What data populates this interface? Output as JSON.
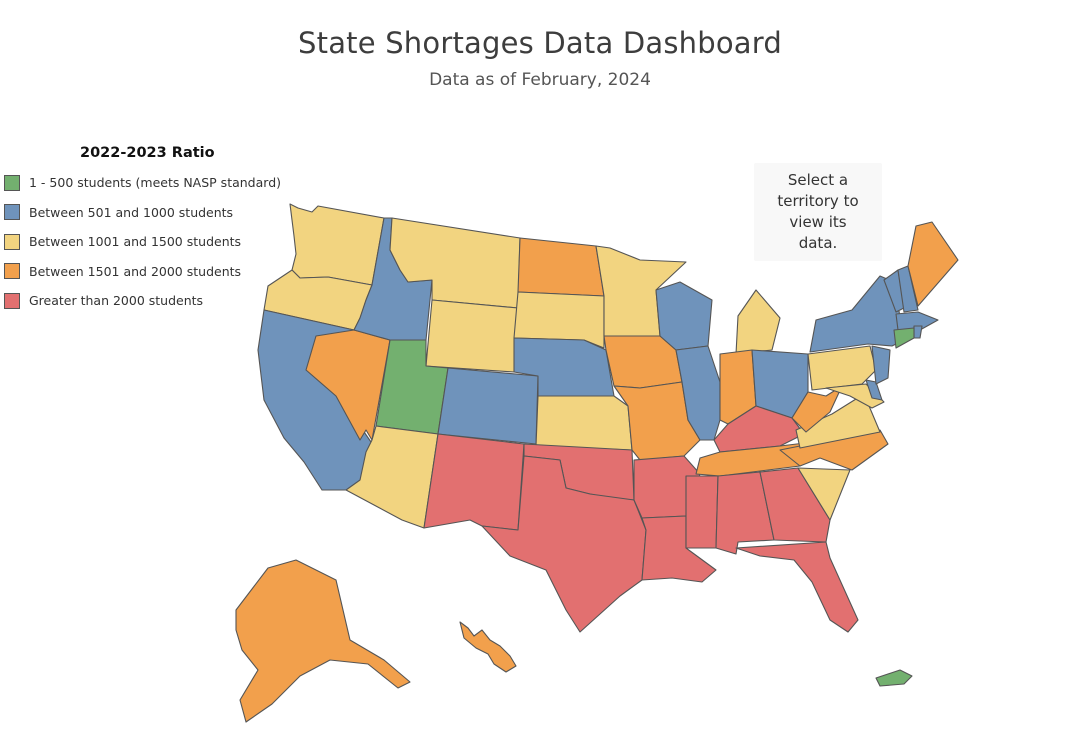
{
  "header": {
    "title": "State Shortages Data Dashboard",
    "subtitle": "Data as of February, 2024"
  },
  "legend": {
    "title": "2022-2023 Ratio",
    "items": [
      {
        "label": "1 - 500 students (meets NASP standard)",
        "color": "#73b06f"
      },
      {
        "label": "Between 501 and 1000 students",
        "color": "#6f93bb"
      },
      {
        "label": "Between 1001 and 1500 students",
        "color": "#f2d480"
      },
      {
        "label": "Between 1501 and 2000 students",
        "color": "#f2a04c"
      },
      {
        "label": "Greater than 2000 students",
        "color": "#e27070"
      }
    ]
  },
  "hint": {
    "text": "Select a\nterritory to\nview its\ndata."
  },
  "map": {
    "states": [
      {
        "name": "Washington",
        "cat": 2
      },
      {
        "name": "Oregon",
        "cat": 2
      },
      {
        "name": "California",
        "cat": 1
      },
      {
        "name": "Nevada",
        "cat": 3
      },
      {
        "name": "Idaho",
        "cat": 1
      },
      {
        "name": "Montana",
        "cat": 2
      },
      {
        "name": "Wyoming",
        "cat": 2
      },
      {
        "name": "Utah",
        "cat": 0
      },
      {
        "name": "Arizona",
        "cat": 2
      },
      {
        "name": "Colorado",
        "cat": 1
      },
      {
        "name": "New Mexico",
        "cat": 4
      },
      {
        "name": "North Dakota",
        "cat": 3
      },
      {
        "name": "South Dakota",
        "cat": 2
      },
      {
        "name": "Nebraska",
        "cat": 1
      },
      {
        "name": "Kansas",
        "cat": 2
      },
      {
        "name": "Oklahoma",
        "cat": 4
      },
      {
        "name": "Texas",
        "cat": 4
      },
      {
        "name": "Minnesota",
        "cat": 2
      },
      {
        "name": "Iowa",
        "cat": 3
      },
      {
        "name": "Missouri",
        "cat": 3
      },
      {
        "name": "Arkansas",
        "cat": 4
      },
      {
        "name": "Louisiana",
        "cat": 4
      },
      {
        "name": "Wisconsin",
        "cat": 1
      },
      {
        "name": "Illinois",
        "cat": 1
      },
      {
        "name": "Michigan",
        "cat": 2
      },
      {
        "name": "Indiana",
        "cat": 3
      },
      {
        "name": "Ohio",
        "cat": 1
      },
      {
        "name": "Kentucky",
        "cat": 4
      },
      {
        "name": "Tennessee",
        "cat": 3
      },
      {
        "name": "Mississippi",
        "cat": 4
      },
      {
        "name": "Alabama",
        "cat": 4
      },
      {
        "name": "Georgia",
        "cat": 4
      },
      {
        "name": "Florida",
        "cat": 4
      },
      {
        "name": "South Carolina",
        "cat": 2
      },
      {
        "name": "North Carolina",
        "cat": 3
      },
      {
        "name": "Virginia",
        "cat": 2
      },
      {
        "name": "West Virginia",
        "cat": 3
      },
      {
        "name": "Pennsylvania",
        "cat": 2
      },
      {
        "name": "New York",
        "cat": 1
      },
      {
        "name": "Vermont",
        "cat": 1
      },
      {
        "name": "New Hampshire",
        "cat": 1
      },
      {
        "name": "Maine",
        "cat": 3
      },
      {
        "name": "Massachusetts",
        "cat": 1
      },
      {
        "name": "Rhode Island",
        "cat": 1
      },
      {
        "name": "Connecticut",
        "cat": 0
      },
      {
        "name": "New Jersey",
        "cat": 1
      },
      {
        "name": "Delaware",
        "cat": 1
      },
      {
        "name": "Maryland",
        "cat": 2
      },
      {
        "name": "Alaska",
        "cat": 3
      },
      {
        "name": "Hawaii",
        "cat": 3
      },
      {
        "name": "Puerto Rico",
        "cat": 0
      }
    ]
  }
}
